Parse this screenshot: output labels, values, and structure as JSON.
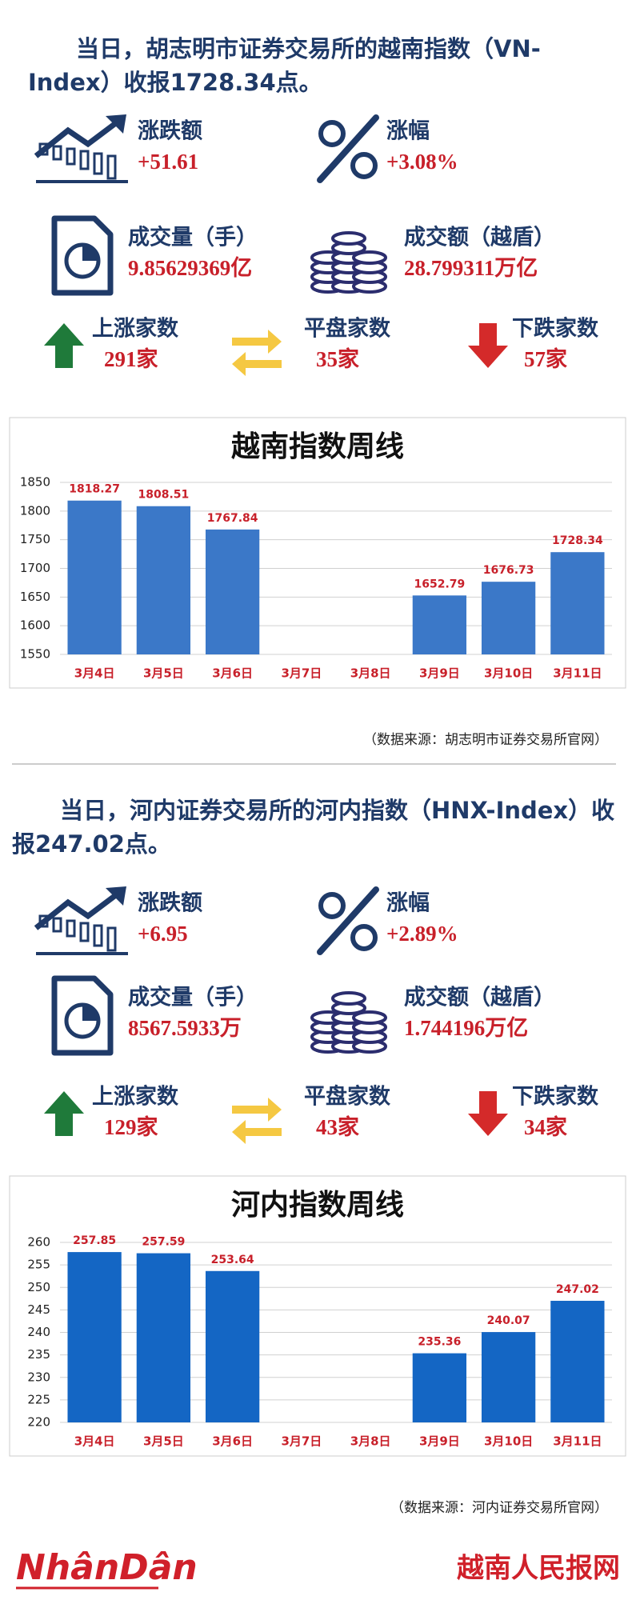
{
  "sections": [
    {
      "headline": "当日，胡志明市证券交易所的越南指数（VN-Index）收报1728.34点。",
      "stats": [
        {
          "label": "涨跌额",
          "value": "+51.61"
        },
        {
          "label": "涨幅",
          "value": "+3.08%"
        },
        {
          "label": "成交量（手）",
          "value": "9.85629369亿"
        },
        {
          "label": "成交额（越盾）",
          "value": "28.799311万亿"
        },
        {
          "label": "上涨家数",
          "value": "291家"
        },
        {
          "label": "平盘家数",
          "value": "35家"
        },
        {
          "label": "下跌家数",
          "value": "57家"
        }
      ],
      "source": "（数据来源：胡志明市证券交易所官网）"
    },
    {
      "headline": "当日，河内证券交易所的河内指数（HNX-Index）收报247.02点。",
      "stats": [
        {
          "label": "涨跌额",
          "value": "+6.95"
        },
        {
          "label": "涨幅",
          "value": "+2.89%"
        },
        {
          "label": "成交量（手）",
          "value": "8567.5933万"
        },
        {
          "label": "成交额（越盾）",
          "value": "1.744196万亿"
        },
        {
          "label": "上涨家数",
          "value": "129家"
        },
        {
          "label": "平盘家数",
          "value": "43家"
        },
        {
          "label": "下跌家数",
          "value": "34家"
        }
      ],
      "source": "（数据来源：河内证券交易所官网）"
    }
  ],
  "chart_data": [
    {
      "type": "bar",
      "title": "越南指数周线",
      "categories": [
        "3月4日",
        "3月5日",
        "3月6日",
        "3月7日",
        "3月8日",
        "3月9日",
        "3月10日",
        "3月11日"
      ],
      "values": [
        1818.27,
        1808.51,
        1767.84,
        null,
        null,
        1652.79,
        1676.73,
        1728.34
      ],
      "color": "#3b78c8",
      "ylim": [
        1550,
        1850
      ],
      "yticks": [
        1550,
        1600,
        1650,
        1700,
        1750,
        1800,
        1850
      ],
      "grid": true
    },
    {
      "type": "bar",
      "title": "河内指数周线",
      "categories": [
        "3月4日",
        "3月5日",
        "3月6日",
        "3月7日",
        "3月8日",
        "3月9日",
        "3月10日",
        "3月11日"
      ],
      "values": [
        257.85,
        257.59,
        253.64,
        null,
        null,
        235.36,
        240.07,
        247.02
      ],
      "color": "#1466c4",
      "ylim": [
        220,
        260
      ],
      "yticks": [
        220,
        225,
        230,
        235,
        240,
        245,
        250,
        255,
        260
      ],
      "grid": true
    }
  ],
  "footer": {
    "logo": "NhânDân",
    "site": "越南人民报网"
  }
}
